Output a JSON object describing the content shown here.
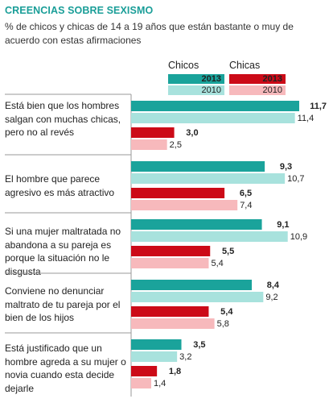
{
  "header": {
    "title": "CREENCIAS SOBRE SEXISMO",
    "subtitle": "% de chicos y chicas de 14 a 19 años que están bastante o muy de acuerdo con estas afirmaciones"
  },
  "legend": {
    "chicos": {
      "label": "Chicos",
      "year_2013": "2013",
      "year_2010": "2010"
    },
    "chicas": {
      "label": "Chicas",
      "year_2013": "2013",
      "year_2010": "2010"
    }
  },
  "colors": {
    "chicos_2013": "#1aa39b",
    "chicos_2010": "#a8e2dd",
    "chicas_2013": "#cc0a17",
    "chicas_2010": "#f7b9bc",
    "divider": "#9a9a9a",
    "title": "#1a9e98"
  },
  "chart_data": {
    "type": "bar",
    "orientation": "horizontal",
    "categories": [
      "Está bien que los hombres salgan con muchas chicas, pero no al revés",
      "El hombre que parece agresivo es más atractivo",
      "Si una mujer maltratada no abandona a su pareja es porque la situación no le disgusta",
      "Conviene no denunciar maltrato de tu pareja por el bien de los hijos",
      "Está justificado que un hombre agreda a su mujer o novia cuando esta decide dejarle"
    ],
    "series": [
      {
        "name": "Chicos 2013",
        "values": [
          11.7,
          9.3,
          9.1,
          8.4,
          3.5
        ],
        "labels": [
          "11,7",
          "9,3",
          "9,1",
          "8,4",
          "3,5"
        ]
      },
      {
        "name": "Chicos 2010",
        "values": [
          11.4,
          10.7,
          10.9,
          9.2,
          3.2
        ],
        "labels": [
          "11,4",
          "10,7",
          "10,9",
          "9,2",
          "3,2"
        ]
      },
      {
        "name": "Chicas 2013",
        "values": [
          3.0,
          6.5,
          5.5,
          5.4,
          1.8
        ],
        "labels": [
          "3,0",
          "6,5",
          "5,5",
          "5,4",
          "1,8"
        ]
      },
      {
        "name": "Chicas 2010",
        "values": [
          2.5,
          7.4,
          5.4,
          5.8,
          1.4
        ],
        "labels": [
          "2,5",
          "7,4",
          "5,4",
          "5,8",
          "1,4"
        ]
      }
    ],
    "xlim": [
      0,
      11.7
    ],
    "grid": false
  }
}
